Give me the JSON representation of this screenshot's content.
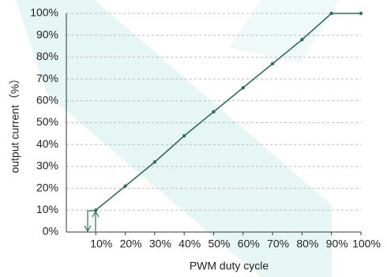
{
  "chart_data": {
    "type": "line",
    "x_label": "PWM duty cycle",
    "y_label": "output current（%）",
    "x": [
      10,
      20,
      30,
      40,
      50,
      60,
      70,
      80,
      90,
      100
    ],
    "series": [
      {
        "name": "output current",
        "color": "#2f6e5c",
        "values": [
          10,
          21,
          32,
          44,
          55,
          66,
          77,
          88,
          100,
          100
        ]
      }
    ],
    "xlim": [
      0,
      100
    ],
    "xticks": [
      {
        "value": 10,
        "label": "10%"
      },
      {
        "value": 20,
        "label": "20%"
      },
      {
        "value": 30,
        "label": "30%"
      },
      {
        "value": 40,
        "label": "40%"
      },
      {
        "value": 50,
        "label": "50%"
      },
      {
        "value": 60,
        "label": "60%"
      },
      {
        "value": 70,
        "label": "70%"
      },
      {
        "value": 80,
        "label": "80%"
      },
      {
        "value": 90,
        "label": "90%"
      },
      {
        "value": 100,
        "label": "100%"
      }
    ],
    "ylim": [
      0,
      100
    ],
    "yticks": [
      {
        "value": 0,
        "label": "0%"
      },
      {
        "value": 10,
        "label": "10%"
      },
      {
        "value": 20,
        "label": "20%"
      },
      {
        "value": 30,
        "label": "30%"
      },
      {
        "value": 40,
        "label": "40%"
      },
      {
        "value": 50,
        "label": "50%"
      },
      {
        "value": 60,
        "label": "60%"
      },
      {
        "value": 70,
        "label": "70%"
      },
      {
        "value": 80,
        "label": "80%"
      },
      {
        "value": 90,
        "label": "90%"
      },
      {
        "value": 100,
        "label": "100%"
      }
    ],
    "grid": true
  }
}
